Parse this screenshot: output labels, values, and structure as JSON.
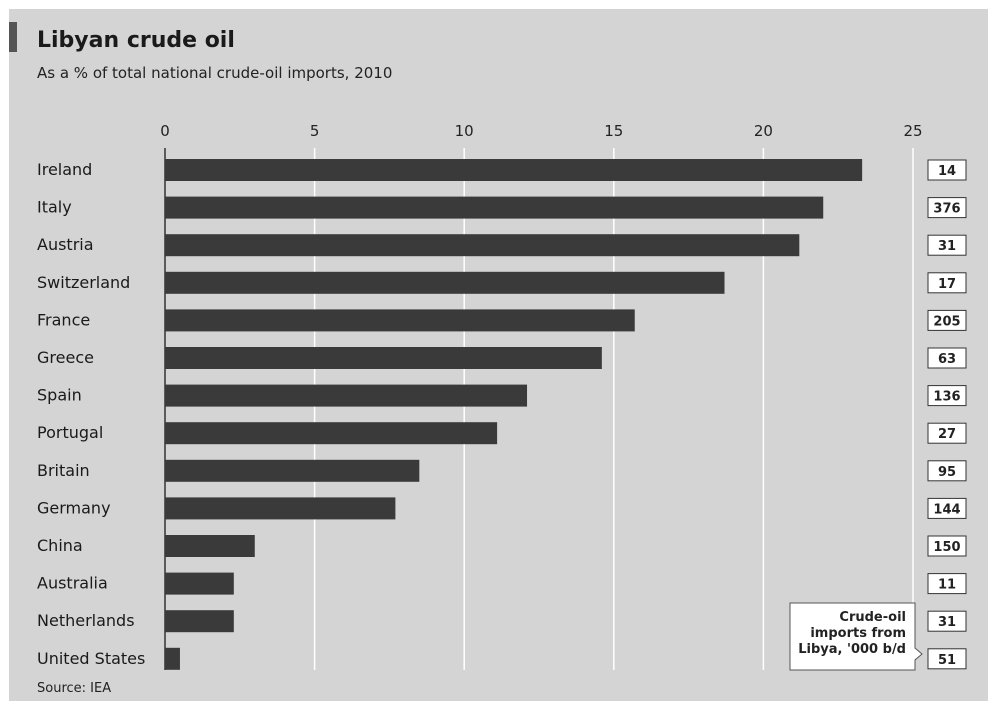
{
  "title": "Libyan crude oil",
  "subtitle": "As a % of total national crude-oil imports, 2010",
  "source": "Source: IEA",
  "colors": {
    "background": "#d4d4d4",
    "bar": "#3a3a3a",
    "grid": "#ffffff",
    "accent": "#555555"
  },
  "chart_data": {
    "type": "bar",
    "orientation": "horizontal",
    "categories": [
      "Ireland",
      "Italy",
      "Austria",
      "Switzerland",
      "France",
      "Greece",
      "Spain",
      "Portugal",
      "Britain",
      "Germany",
      "China",
      "Australia",
      "Netherlands",
      "United States"
    ],
    "values": [
      23.3,
      22.0,
      21.2,
      18.7,
      15.7,
      14.6,
      12.1,
      11.1,
      8.5,
      7.7,
      3.0,
      2.3,
      2.3,
      0.5
    ],
    "xlim": [
      0,
      25
    ],
    "xticks": [
      0,
      5,
      10,
      15,
      20,
      25
    ],
    "grid": true,
    "side_values": [
      "14",
      "376",
      "31",
      "17",
      "205",
      "63",
      "136",
      "27",
      "95",
      "144",
      "150",
      "11",
      "31",
      "51"
    ],
    "side_label": "Crude-oil imports from Libya, '000 b/d",
    "side_label_lines": [
      "Crude-oil",
      "imports from",
      "Libya, '000 b/d"
    ]
  }
}
